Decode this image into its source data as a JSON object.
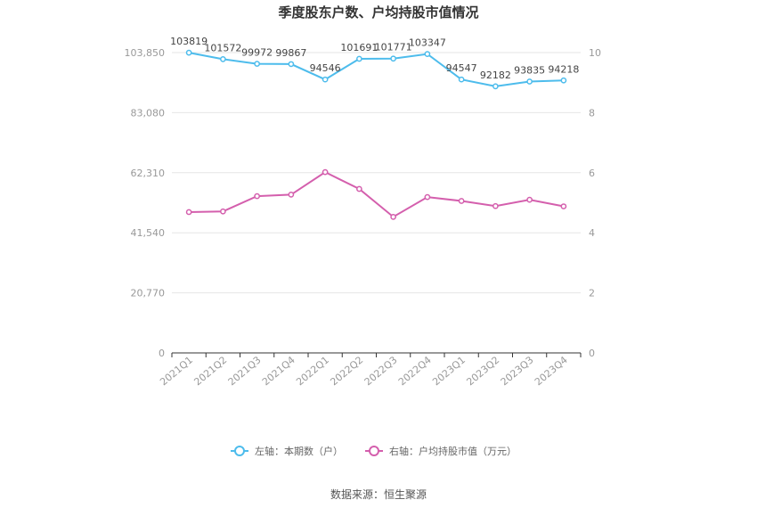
{
  "chart_data": {
    "type": "line",
    "title": "季度股东户数、户均持股市值情况",
    "categories": [
      "2021Q1",
      "2021Q2",
      "2021Q3",
      "2021Q4",
      "2022Q1",
      "2022Q2",
      "2022Q3",
      "2022Q4",
      "2023Q1",
      "2023Q2",
      "2023Q3",
      "2023Q4"
    ],
    "left_axis": {
      "ticks": [
        "0",
        "20,770",
        "41,540",
        "62,310",
        "83,080",
        "103,850"
      ],
      "min": 0,
      "max": 103850
    },
    "right_axis": {
      "ticks": [
        "0",
        "2",
        "4",
        "6",
        "8",
        "10"
      ],
      "min": 0,
      "max": 10
    },
    "series": [
      {
        "name": "左轴：本期数（户）",
        "axis": "left",
        "color": "#4dbcec",
        "values": [
          103819,
          101572,
          99972,
          99867,
          94546,
          101691,
          101771,
          103347,
          94547,
          92182,
          93835,
          94218
        ],
        "labels": [
          "103819",
          "101572",
          "99972",
          "99867",
          "94546",
          "101691",
          "101771",
          "103347",
          "94547",
          "92182",
          "93835",
          "94218"
        ]
      },
      {
        "name": "右轴：户均持股市值（万元）",
        "axis": "right",
        "color": "#d45fad",
        "values": [
          4.69,
          4.71,
          5.22,
          5.27,
          6.02,
          5.46,
          4.53,
          5.19,
          5.06,
          4.89,
          5.1,
          4.88
        ]
      }
    ],
    "grid": true,
    "legend_position": "bottom"
  },
  "footer": {
    "source": "数据来源：恒生聚源"
  }
}
